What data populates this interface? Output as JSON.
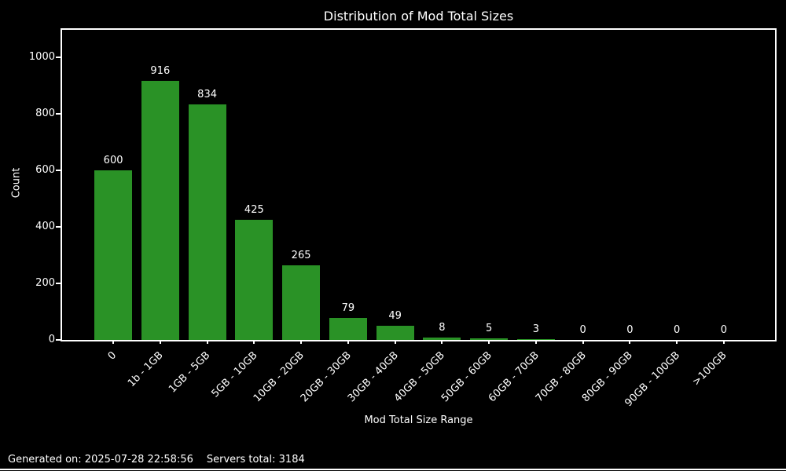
{
  "footer": {
    "generated": "Generated on: 2025-07-28 22:58:56",
    "servers_total": "Servers total: 3184"
  },
  "chart_data": {
    "type": "bar",
    "title": "Distribution of Mod Total Sizes",
    "xlabel": "Mod Total Size Range",
    "ylabel": "Count",
    "categories": [
      "0",
      "1b - 1GB",
      "1GB - 5GB",
      "5GB - 10GB",
      "10GB - 20GB",
      "20GB - 30GB",
      "30GB - 40GB",
      "40GB - 50GB",
      "50GB - 60GB",
      "60GB - 70GB",
      "70GB - 80GB",
      "80GB - 90GB",
      "90GB - 100GB",
      ">100GB"
    ],
    "values": [
      600,
      916,
      834,
      425,
      265,
      79,
      49,
      8,
      5,
      3,
      0,
      0,
      0,
      0
    ],
    "yticks": [
      0,
      200,
      400,
      600,
      800,
      1000
    ],
    "ylim": [
      0,
      1097
    ],
    "xtick_rotation": 45,
    "grid": false,
    "legend": null,
    "value_labels": true,
    "bar_color": "#2a9226",
    "background_color": "#000000",
    "text_color": "#ffffff"
  }
}
